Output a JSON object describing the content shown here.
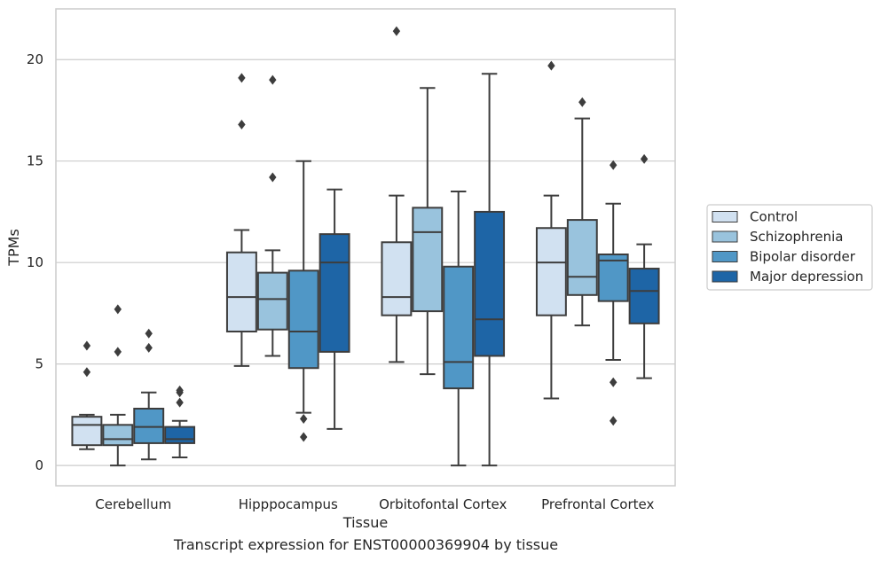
{
  "caption": "Transcript expression for ENST00000369904 by tissue",
  "chart_data": {
    "type": "boxplot",
    "xlabel": "Tissue",
    "ylabel": "TPMs",
    "ylim": [
      -1,
      22.5
    ],
    "yticks": [
      0,
      5,
      10,
      15,
      20
    ],
    "grid": "horizontal",
    "legend_position": "right",
    "categories": [
      "Cerebellum",
      "Hipppocampus",
      "Orbitofontal Cortex",
      "Prefrontal Cortex"
    ],
    "series": [
      {
        "name": "Control",
        "color": "#d1e1f1",
        "boxes": [
          {
            "whisker_low": 0.8,
            "q1": 1.0,
            "median": 2.0,
            "q3": 2.4,
            "whisker_high": 2.5,
            "outliers": [
              4.6,
              5.9
            ]
          },
          {
            "whisker_low": 4.9,
            "q1": 6.6,
            "median": 8.3,
            "q3": 10.5,
            "whisker_high": 11.6,
            "outliers": [
              16.8,
              19.1
            ]
          },
          {
            "whisker_low": 5.1,
            "q1": 7.4,
            "median": 8.3,
            "q3": 11.0,
            "whisker_high": 13.3,
            "outliers": [
              21.4
            ]
          },
          {
            "whisker_low": 3.3,
            "q1": 7.4,
            "median": 10.0,
            "q3": 11.7,
            "whisker_high": 13.3,
            "outliers": [
              19.7
            ]
          }
        ]
      },
      {
        "name": "Schizophrenia",
        "color": "#99c3dd",
        "boxes": [
          {
            "whisker_low": 0.0,
            "q1": 1.0,
            "median": 1.3,
            "q3": 2.0,
            "whisker_high": 2.5,
            "outliers": [
              5.6,
              7.7
            ]
          },
          {
            "whisker_low": 5.4,
            "q1": 6.7,
            "median": 8.2,
            "q3": 9.5,
            "whisker_high": 10.6,
            "outliers": [
              14.2,
              19.0
            ]
          },
          {
            "whisker_low": 4.5,
            "q1": 7.6,
            "median": 11.5,
            "q3": 12.7,
            "whisker_high": 18.6,
            "outliers": []
          },
          {
            "whisker_low": 6.9,
            "q1": 8.4,
            "median": 9.3,
            "q3": 12.1,
            "whisker_high": 17.1,
            "outliers": [
              17.9
            ]
          }
        ]
      },
      {
        "name": "Bipolar disorder",
        "color": "#5097c6",
        "boxes": [
          {
            "whisker_low": 0.3,
            "q1": 1.1,
            "median": 1.9,
            "q3": 2.8,
            "whisker_high": 3.6,
            "outliers": [
              5.8,
              6.5
            ]
          },
          {
            "whisker_low": 2.6,
            "q1": 4.8,
            "median": 6.6,
            "q3": 9.6,
            "whisker_high": 15.0,
            "outliers": [
              1.4,
              2.3
            ]
          },
          {
            "whisker_low": 0.0,
            "q1": 3.8,
            "median": 5.1,
            "q3": 9.8,
            "whisker_high": 13.5,
            "outliers": []
          },
          {
            "whisker_low": 5.2,
            "q1": 8.1,
            "median": 10.1,
            "q3": 10.4,
            "whisker_high": 12.9,
            "outliers": [
              2.2,
              4.1,
              14.8
            ]
          }
        ]
      },
      {
        "name": "Major depression",
        "color": "#1e65a6",
        "boxes": [
          {
            "whisker_low": 0.4,
            "q1": 1.1,
            "median": 1.3,
            "q3": 1.9,
            "whisker_high": 2.2,
            "outliers": [
              3.1,
              3.6,
              3.7
            ]
          },
          {
            "whisker_low": 1.8,
            "q1": 5.6,
            "median": 10.0,
            "q3": 11.4,
            "whisker_high": 13.6,
            "outliers": []
          },
          {
            "whisker_low": 0.0,
            "q1": 5.4,
            "median": 7.2,
            "q3": 12.5,
            "whisker_high": 19.3,
            "outliers": []
          },
          {
            "whisker_low": 4.3,
            "q1": 7.0,
            "median": 8.6,
            "q3": 9.7,
            "whisker_high": 10.9,
            "outliers": [
              15.1
            ]
          }
        ]
      }
    ]
  }
}
